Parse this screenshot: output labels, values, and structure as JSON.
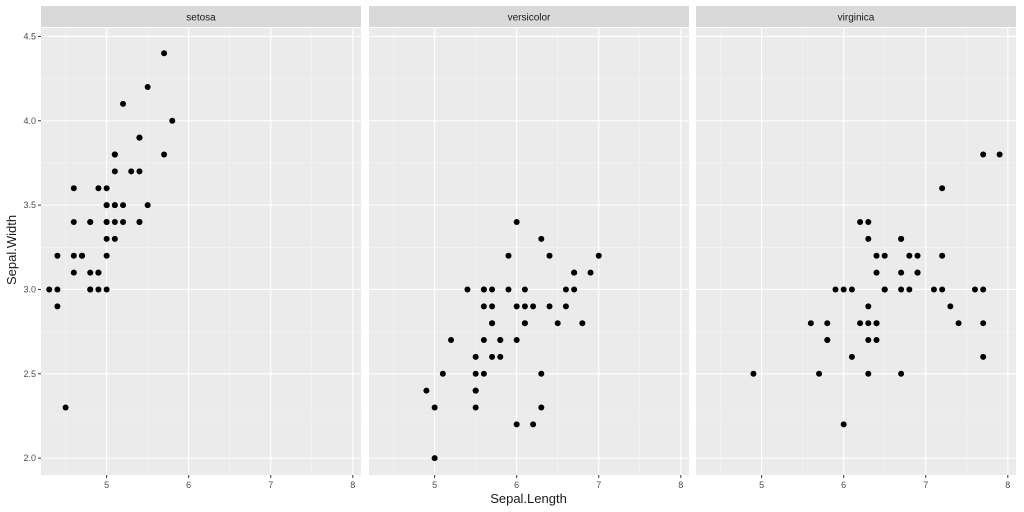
{
  "chart_data": {
    "type": "scatter",
    "xlabel": "Sepal.Length",
    "ylabel": "Sepal.Width",
    "xlim": [
      4.2,
      8.1
    ],
    "ylim": [
      1.9,
      4.55
    ],
    "x_ticks": [
      5,
      6,
      7,
      8
    ],
    "y_ticks": [
      2.0,
      2.5,
      3.0,
      3.5,
      4.0,
      4.5
    ],
    "x_tick_labels": [
      "5",
      "6",
      "7",
      "8"
    ],
    "y_tick_labels": [
      "2.0",
      "2.5",
      "3.0",
      "3.5",
      "4.0",
      "4.5"
    ],
    "grid": true,
    "point_color": "#000000",
    "panels": [
      {
        "name": "setosa",
        "points": [
          [
            5.1,
            3.5
          ],
          [
            4.9,
            3.0
          ],
          [
            4.7,
            3.2
          ],
          [
            4.6,
            3.1
          ],
          [
            5.0,
            3.6
          ],
          [
            5.4,
            3.9
          ],
          [
            4.6,
            3.4
          ],
          [
            5.0,
            3.4
          ],
          [
            4.4,
            2.9
          ],
          [
            4.9,
            3.1
          ],
          [
            5.4,
            3.7
          ],
          [
            4.8,
            3.4
          ],
          [
            4.8,
            3.0
          ],
          [
            4.3,
            3.0
          ],
          [
            5.8,
            4.0
          ],
          [
            5.7,
            4.4
          ],
          [
            5.4,
            3.9
          ],
          [
            5.1,
            3.5
          ],
          [
            5.7,
            3.8
          ],
          [
            5.1,
            3.8
          ],
          [
            5.4,
            3.4
          ],
          [
            5.1,
            3.7
          ],
          [
            4.6,
            3.6
          ],
          [
            5.1,
            3.3
          ],
          [
            4.8,
            3.4
          ],
          [
            5.0,
            3.0
          ],
          [
            5.0,
            3.4
          ],
          [
            5.2,
            3.5
          ],
          [
            5.2,
            3.4
          ],
          [
            4.7,
            3.2
          ],
          [
            4.8,
            3.1
          ],
          [
            5.4,
            3.4
          ],
          [
            5.2,
            4.1
          ],
          [
            5.5,
            4.2
          ],
          [
            4.9,
            3.1
          ],
          [
            5.0,
            3.2
          ],
          [
            5.5,
            3.5
          ],
          [
            4.9,
            3.6
          ],
          [
            4.4,
            3.0
          ],
          [
            5.1,
            3.4
          ],
          [
            5.0,
            3.5
          ],
          [
            4.5,
            2.3
          ],
          [
            4.4,
            3.2
          ],
          [
            5.0,
            3.5
          ],
          [
            5.1,
            3.8
          ],
          [
            4.8,
            3.0
          ],
          [
            5.1,
            3.8
          ],
          [
            4.6,
            3.2
          ],
          [
            5.3,
            3.7
          ],
          [
            5.0,
            3.3
          ]
        ]
      },
      {
        "name": "versicolor",
        "points": [
          [
            7.0,
            3.2
          ],
          [
            6.4,
            3.2
          ],
          [
            6.9,
            3.1
          ],
          [
            5.5,
            2.3
          ],
          [
            6.5,
            2.8
          ],
          [
            5.7,
            2.8
          ],
          [
            6.3,
            3.3
          ],
          [
            4.9,
            2.4
          ],
          [
            6.6,
            2.9
          ],
          [
            5.2,
            2.7
          ],
          [
            5.0,
            2.0
          ],
          [
            5.9,
            3.0
          ],
          [
            6.0,
            2.2
          ],
          [
            6.1,
            2.9
          ],
          [
            5.6,
            2.9
          ],
          [
            6.7,
            3.1
          ],
          [
            5.6,
            3.0
          ],
          [
            5.8,
            2.7
          ],
          [
            6.2,
            2.2
          ],
          [
            5.6,
            2.5
          ],
          [
            5.9,
            3.2
          ],
          [
            6.1,
            2.8
          ],
          [
            6.3,
            2.5
          ],
          [
            6.1,
            2.8
          ],
          [
            6.4,
            2.9
          ],
          [
            6.6,
            3.0
          ],
          [
            6.8,
            2.8
          ],
          [
            6.7,
            3.0
          ],
          [
            6.0,
            2.9
          ],
          [
            5.7,
            2.6
          ],
          [
            5.5,
            2.4
          ],
          [
            5.5,
            2.4
          ],
          [
            5.8,
            2.7
          ],
          [
            6.0,
            2.7
          ],
          [
            5.4,
            3.0
          ],
          [
            6.0,
            3.4
          ],
          [
            6.7,
            3.1
          ],
          [
            6.3,
            2.3
          ],
          [
            5.6,
            3.0
          ],
          [
            5.5,
            2.5
          ],
          [
            5.5,
            2.6
          ],
          [
            6.1,
            3.0
          ],
          [
            5.8,
            2.6
          ],
          [
            5.0,
            2.3
          ],
          [
            5.6,
            2.7
          ],
          [
            5.7,
            3.0
          ],
          [
            5.7,
            2.9
          ],
          [
            6.2,
            2.9
          ],
          [
            5.1,
            2.5
          ],
          [
            5.7,
            2.8
          ]
        ]
      },
      {
        "name": "virginica",
        "points": [
          [
            6.3,
            3.3
          ],
          [
            5.8,
            2.7
          ],
          [
            7.1,
            3.0
          ],
          [
            6.3,
            2.9
          ],
          [
            6.5,
            3.0
          ],
          [
            7.6,
            3.0
          ],
          [
            4.9,
            2.5
          ],
          [
            7.3,
            2.9
          ],
          [
            6.7,
            2.5
          ],
          [
            7.2,
            3.6
          ],
          [
            6.5,
            3.2
          ],
          [
            6.4,
            2.7
          ],
          [
            6.8,
            3.0
          ],
          [
            5.7,
            2.5
          ],
          [
            5.8,
            2.8
          ],
          [
            6.4,
            3.2
          ],
          [
            6.5,
            3.0
          ],
          [
            7.7,
            3.8
          ],
          [
            7.7,
            2.6
          ],
          [
            6.0,
            2.2
          ],
          [
            6.9,
            3.2
          ],
          [
            5.6,
            2.8
          ],
          [
            7.7,
            2.8
          ],
          [
            6.3,
            2.7
          ],
          [
            6.7,
            3.3
          ],
          [
            7.2,
            3.2
          ],
          [
            6.2,
            2.8
          ],
          [
            6.1,
            3.0
          ],
          [
            6.4,
            2.8
          ],
          [
            7.2,
            3.0
          ],
          [
            7.4,
            2.8
          ],
          [
            7.9,
            3.8
          ],
          [
            6.4,
            2.8
          ],
          [
            6.3,
            2.8
          ],
          [
            6.1,
            2.6
          ],
          [
            7.7,
            3.0
          ],
          [
            6.3,
            3.4
          ],
          [
            6.4,
            3.1
          ],
          [
            6.0,
            3.0
          ],
          [
            6.9,
            3.1
          ],
          [
            6.7,
            3.1
          ],
          [
            6.9,
            3.1
          ],
          [
            5.8,
            2.7
          ],
          [
            6.8,
            3.2
          ],
          [
            6.7,
            3.3
          ],
          [
            6.7,
            3.0
          ],
          [
            6.3,
            2.5
          ],
          [
            6.5,
            3.0
          ],
          [
            6.2,
            3.4
          ],
          [
            5.9,
            3.0
          ]
        ]
      }
    ]
  }
}
